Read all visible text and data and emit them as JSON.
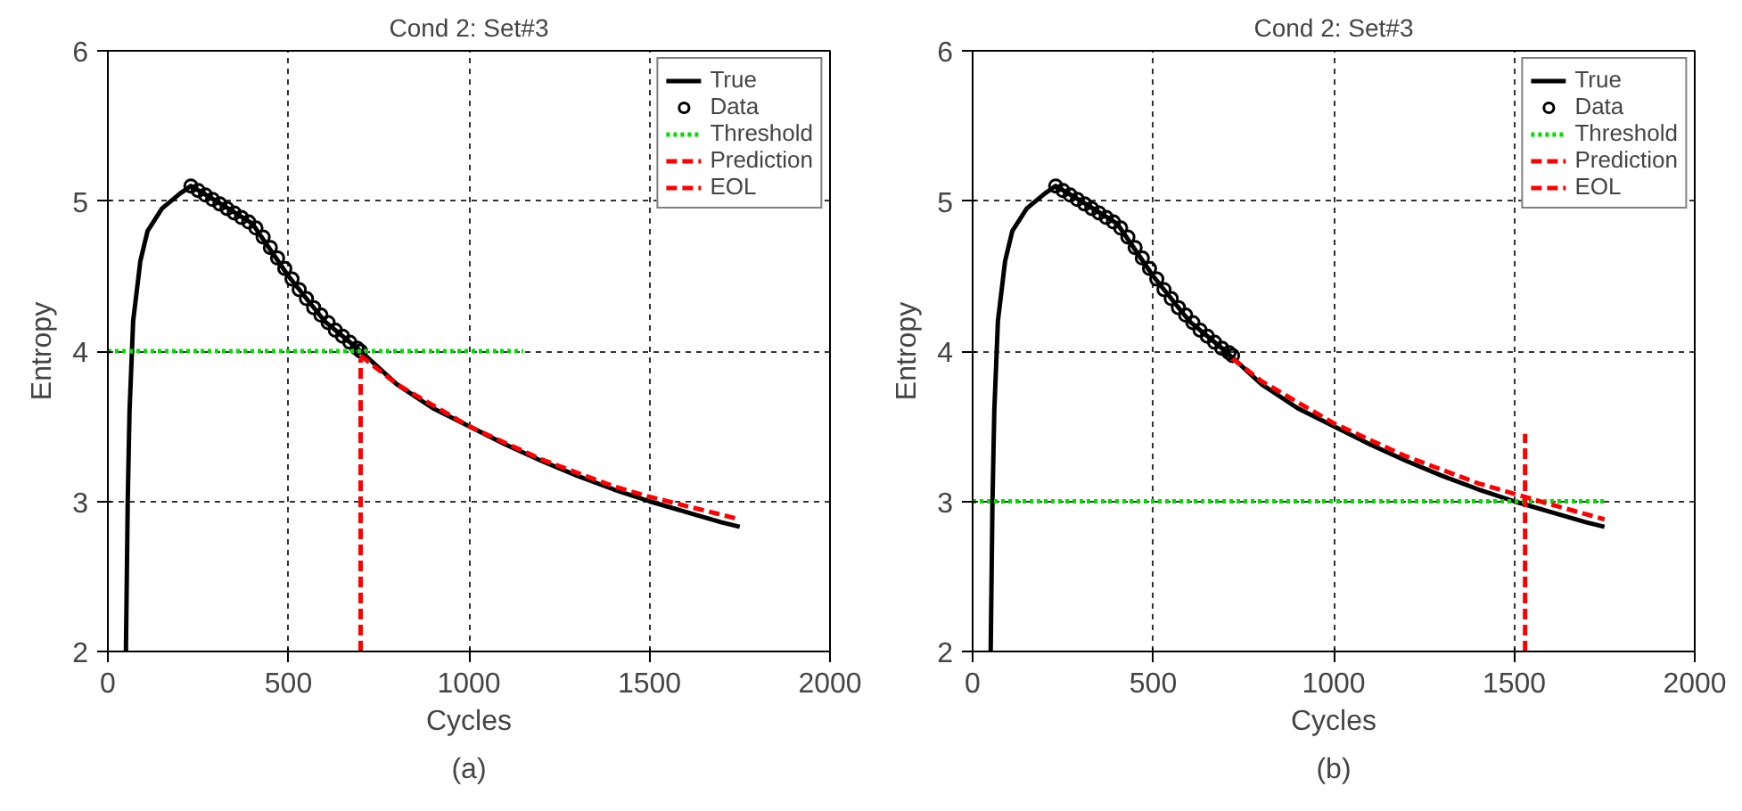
{
  "chart_data": [
    {
      "type": "line",
      "title": "Cond 2: Set#3",
      "xlabel": "Cycles",
      "ylabel": "Entropy",
      "annotations": [
        "(a)"
      ],
      "xlim": [
        0,
        2000
      ],
      "ylim": [
        2,
        6
      ],
      "xticks": [
        0,
        500,
        1000,
        1500,
        2000
      ],
      "yticks": [
        2,
        3,
        4,
        5,
        6
      ],
      "grid": true,
      "legend": "top right",
      "series": [
        {
          "name": "True",
          "color": "#000000",
          "line_style": "solid",
          "x": [
            50,
            55,
            60,
            70,
            90,
            110,
            150,
            200,
            230,
            300,
            400,
            500,
            600,
            700,
            800,
            900,
            1000,
            1100,
            1200,
            1300,
            1400,
            1500,
            1600,
            1700,
            1750
          ],
          "values": [
            2,
            3,
            3.6,
            4.2,
            4.6,
            4.8,
            4.95,
            5.05,
            5.1,
            5.0,
            4.85,
            4.5,
            4.2,
            4.0,
            3.78,
            3.62,
            3.5,
            3.38,
            3.27,
            3.17,
            3.08,
            3.0,
            2.93,
            2.86,
            2.83
          ]
        },
        {
          "name": "Data",
          "type": "scatter",
          "marker": "circle",
          "color": "#000000",
          "x": [
            230,
            250,
            270,
            290,
            310,
            330,
            350,
            370,
            390,
            410,
            430,
            450,
            470,
            490,
            510,
            530,
            550,
            570,
            590,
            610,
            630,
            650,
            670,
            690,
            700
          ],
          "values": [
            5.1,
            5.07,
            5.04,
            5.01,
            4.98,
            4.95,
            4.92,
            4.89,
            4.86,
            4.82,
            4.76,
            4.69,
            4.62,
            4.55,
            4.48,
            4.41,
            4.35,
            4.29,
            4.24,
            4.19,
            4.14,
            4.1,
            4.06,
            4.02,
            4.0
          ]
        },
        {
          "name": "Threshold",
          "color": "#00dd00",
          "line_style": "dotted",
          "x": [
            0,
            1150
          ],
          "values": [
            4,
            4
          ]
        },
        {
          "name": "Prediction",
          "color": "#ff0000",
          "line_style": "dashed",
          "x": [
            700,
            800,
            1000,
            1200,
            1400,
            1500,
            1600,
            1750
          ],
          "values": [
            3.97,
            3.78,
            3.5,
            3.28,
            3.1,
            3.03,
            2.97,
            2.88
          ]
        },
        {
          "name": "EOL",
          "color": "#ff0000",
          "line_style": "dashed",
          "x": [
            700,
            700
          ],
          "values": [
            2,
            3.95
          ]
        }
      ]
    },
    {
      "type": "line",
      "title": "Cond 2: Set#3",
      "xlabel": "Cycles",
      "ylabel": "Entropy",
      "annotations": [
        "(b)"
      ],
      "xlim": [
        0,
        2000
      ],
      "ylim": [
        2,
        6
      ],
      "xticks": [
        0,
        500,
        1000,
        1500,
        2000
      ],
      "yticks": [
        2,
        3,
        4,
        5,
        6
      ],
      "grid": true,
      "legend": "top right",
      "series": [
        {
          "name": "True",
          "color": "#000000",
          "line_style": "solid",
          "x": [
            50,
            55,
            60,
            70,
            90,
            110,
            150,
            200,
            230,
            300,
            400,
            500,
            600,
            700,
            800,
            900,
            1000,
            1100,
            1200,
            1300,
            1400,
            1500,
            1600,
            1700,
            1750
          ],
          "values": [
            2,
            3,
            3.6,
            4.2,
            4.6,
            4.8,
            4.95,
            5.05,
            5.1,
            5.0,
            4.85,
            4.5,
            4.2,
            4.0,
            3.78,
            3.62,
            3.5,
            3.38,
            3.27,
            3.17,
            3.08,
            3.0,
            2.93,
            2.86,
            2.83
          ]
        },
        {
          "name": "Data",
          "type": "scatter",
          "marker": "circle",
          "color": "#000000",
          "x": [
            230,
            250,
            270,
            290,
            310,
            330,
            350,
            370,
            390,
            410,
            430,
            450,
            470,
            490,
            510,
            530,
            550,
            570,
            590,
            610,
            630,
            650,
            670,
            690,
            710,
            720
          ],
          "values": [
            5.1,
            5.07,
            5.04,
            5.01,
            4.98,
            4.95,
            4.92,
            4.89,
            4.86,
            4.82,
            4.76,
            4.69,
            4.62,
            4.55,
            4.48,
            4.41,
            4.35,
            4.29,
            4.24,
            4.19,
            4.14,
            4.1,
            4.06,
            4.02,
            3.99,
            3.97
          ]
        },
        {
          "name": "Threshold",
          "color": "#00dd00",
          "line_style": "dotted",
          "x": [
            0,
            1750
          ],
          "values": [
            3,
            3
          ]
        },
        {
          "name": "Prediction",
          "color": "#ff0000",
          "line_style": "dashed",
          "x": [
            720,
            800,
            1000,
            1200,
            1400,
            1500,
            1600,
            1750
          ],
          "values": [
            3.95,
            3.8,
            3.52,
            3.3,
            3.12,
            3.05,
            2.98,
            2.88
          ]
        },
        {
          "name": "EOL",
          "color": "#ff0000",
          "line_style": "dashed",
          "x": [
            1530,
            1530
          ],
          "values": [
            2,
            3.45
          ]
        }
      ]
    }
  ]
}
